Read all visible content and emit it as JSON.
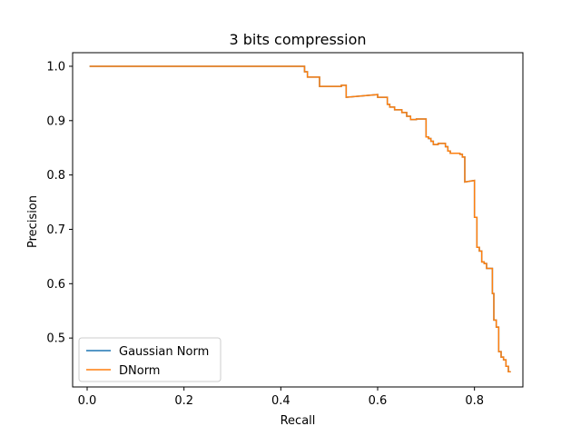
{
  "chart_data": {
    "type": "line",
    "title": "3 bits compression",
    "xlabel": "Recall",
    "ylabel": "Precision",
    "xlim": [
      -0.03,
      0.9
    ],
    "ylim": [
      0.41,
      1.025
    ],
    "xticks": [
      0.0,
      0.2,
      0.4,
      0.6,
      0.8
    ],
    "xtick_labels": [
      "0.0",
      "0.2",
      "0.4",
      "0.6",
      "0.8"
    ],
    "yticks": [
      0.5,
      0.6,
      0.7,
      0.8,
      0.9,
      1.0
    ],
    "ytick_labels": [
      "0.5",
      "0.6",
      "0.7",
      "0.8",
      "0.9",
      "1.0"
    ],
    "grid": false,
    "legend_position": "lower-left",
    "series": [
      {
        "name": "Gaussian Norm",
        "color": "#1f77b4",
        "x": [
          0.005,
          0.449,
          0.449,
          0.455,
          0.455,
          0.48,
          0.48,
          0.525,
          0.525,
          0.535,
          0.535,
          0.6,
          0.6,
          0.62,
          0.62,
          0.625,
          0.625,
          0.635,
          0.635,
          0.65,
          0.65,
          0.66,
          0.66,
          0.668,
          0.668,
          0.68,
          0.68,
          0.7,
          0.7,
          0.705,
          0.705,
          0.71,
          0.71,
          0.715,
          0.715,
          0.725,
          0.725,
          0.74,
          0.74,
          0.745,
          0.745,
          0.75,
          0.75,
          0.77,
          0.77,
          0.775,
          0.775,
          0.78,
          0.78,
          0.8,
          0.8,
          0.805,
          0.805,
          0.81,
          0.81,
          0.815,
          0.815,
          0.82,
          0.82,
          0.825,
          0.825,
          0.837,
          0.837,
          0.84,
          0.84,
          0.845,
          0.845,
          0.85,
          0.85,
          0.855,
          0.855,
          0.86,
          0.86,
          0.865,
          0.865,
          0.87,
          0.87,
          0.875
        ],
        "y": [
          1.0,
          1.0,
          0.99,
          0.99,
          0.98,
          0.98,
          0.963,
          0.963,
          0.965,
          0.965,
          0.943,
          0.948,
          0.943,
          0.943,
          0.93,
          0.93,
          0.925,
          0.925,
          0.92,
          0.92,
          0.915,
          0.915,
          0.908,
          0.908,
          0.902,
          0.902,
          0.903,
          0.903,
          0.87,
          0.87,
          0.867,
          0.867,
          0.862,
          0.862,
          0.856,
          0.856,
          0.858,
          0.858,
          0.852,
          0.852,
          0.844,
          0.844,
          0.84,
          0.84,
          0.838,
          0.838,
          0.833,
          0.833,
          0.787,
          0.79,
          0.722,
          0.722,
          0.667,
          0.667,
          0.66,
          0.66,
          0.64,
          0.64,
          0.637,
          0.637,
          0.628,
          0.628,
          0.582,
          0.582,
          0.533,
          0.533,
          0.52,
          0.52,
          0.475,
          0.475,
          0.465,
          0.465,
          0.46,
          0.46,
          0.448,
          0.448,
          0.438,
          0.438
        ]
      },
      {
        "name": "DNorm",
        "color": "#ff7f0e",
        "x": [
          0.005,
          0.449,
          0.449,
          0.455,
          0.455,
          0.48,
          0.48,
          0.525,
          0.525,
          0.535,
          0.535,
          0.6,
          0.6,
          0.62,
          0.62,
          0.625,
          0.625,
          0.635,
          0.635,
          0.65,
          0.65,
          0.66,
          0.66,
          0.668,
          0.668,
          0.68,
          0.68,
          0.7,
          0.7,
          0.705,
          0.705,
          0.71,
          0.71,
          0.715,
          0.715,
          0.725,
          0.725,
          0.74,
          0.74,
          0.745,
          0.745,
          0.75,
          0.75,
          0.77,
          0.77,
          0.775,
          0.775,
          0.78,
          0.78,
          0.8,
          0.8,
          0.805,
          0.805,
          0.81,
          0.81,
          0.815,
          0.815,
          0.82,
          0.82,
          0.825,
          0.825,
          0.837,
          0.837,
          0.84,
          0.84,
          0.845,
          0.845,
          0.85,
          0.85,
          0.855,
          0.855,
          0.86,
          0.86,
          0.865,
          0.865,
          0.87,
          0.87,
          0.875
        ],
        "y": [
          1.0,
          1.0,
          0.99,
          0.99,
          0.98,
          0.98,
          0.963,
          0.963,
          0.965,
          0.965,
          0.943,
          0.948,
          0.943,
          0.943,
          0.93,
          0.93,
          0.925,
          0.925,
          0.92,
          0.92,
          0.915,
          0.915,
          0.908,
          0.908,
          0.902,
          0.902,
          0.903,
          0.903,
          0.87,
          0.87,
          0.867,
          0.867,
          0.862,
          0.862,
          0.856,
          0.856,
          0.858,
          0.858,
          0.852,
          0.852,
          0.844,
          0.844,
          0.84,
          0.84,
          0.838,
          0.838,
          0.833,
          0.833,
          0.787,
          0.79,
          0.722,
          0.722,
          0.667,
          0.667,
          0.66,
          0.66,
          0.64,
          0.64,
          0.637,
          0.637,
          0.628,
          0.628,
          0.582,
          0.582,
          0.533,
          0.533,
          0.52,
          0.52,
          0.475,
          0.475,
          0.465,
          0.465,
          0.46,
          0.46,
          0.448,
          0.448,
          0.438,
          0.438
        ]
      }
    ]
  }
}
